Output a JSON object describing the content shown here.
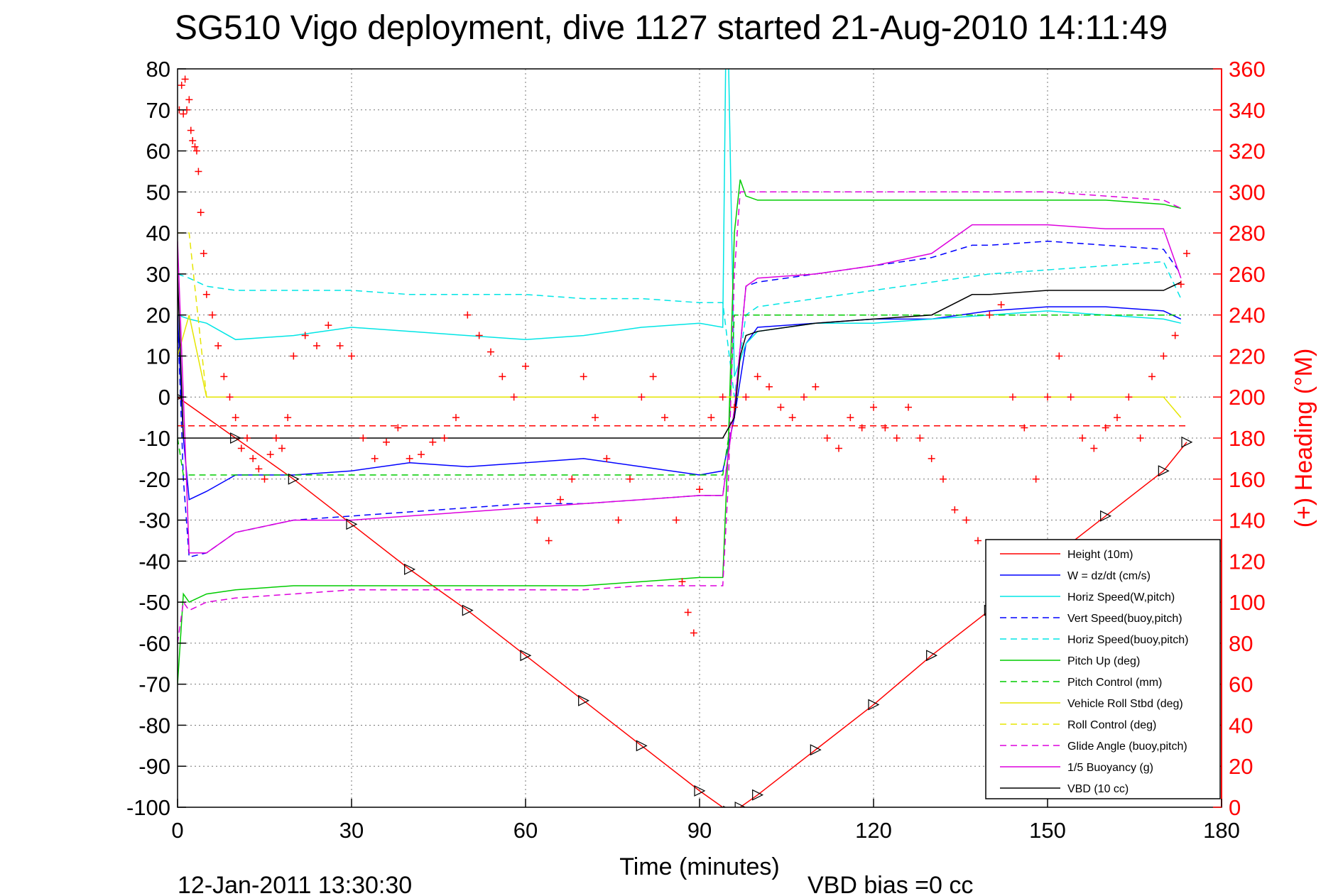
{
  "chart_data": {
    "type": "line",
    "title": "SG510 Vigo deployment, dive 1127 started 21-Aug-2010 14:11:49",
    "xlabel": "Time (minutes)",
    "ylabel": "",
    "y2label": "(+) Heading (°M)",
    "xlim": [
      0,
      180
    ],
    "ylim": [
      -100,
      80
    ],
    "y2lim": [
      0,
      360
    ],
    "x_ticks": [
      "0",
      "30",
      "60",
      "90",
      "120",
      "150",
      "180"
    ],
    "y_ticks": [
      "80",
      "70",
      "60",
      "50",
      "40",
      "30",
      "20",
      "10",
      "0",
      "-10",
      "-20",
      "-30",
      "-40",
      "-50",
      "-60",
      "-70",
      "-80",
      "-90",
      "-100"
    ],
    "y2_ticks": [
      "360",
      "340",
      "320",
      "300",
      "280",
      "260",
      "240",
      "220",
      "200",
      "180",
      "160",
      "140",
      "120",
      "100",
      "80",
      "60",
      "40",
      "20",
      "0"
    ],
    "grid": true,
    "legend_position": "bottom-right",
    "footer_left": "12-Jan-2011 13:30:30",
    "footer_right": "VBD bias =0 cc",
    "series": [
      {
        "name": "Height (10m)",
        "color": "#ff0000",
        "style": "solid",
        "x": [
          0,
          10,
          20,
          30,
          40,
          50,
          60,
          70,
          80,
          90,
          95,
          97,
          100,
          110,
          120,
          130,
          140,
          150,
          160,
          170,
          174
        ],
        "y": [
          0,
          -10,
          -20,
          -31,
          -42,
          -52,
          -63,
          -74,
          -85,
          -96,
          -101,
          -100,
          -97,
          -86,
          -75,
          -63,
          -52,
          -40,
          -29,
          -18,
          -11
        ]
      },
      {
        "name": "W = dz/dt (cm/s)",
        "color": "#0000ff",
        "style": "solid",
        "x": [
          0,
          1,
          2,
          5,
          10,
          20,
          30,
          40,
          50,
          60,
          70,
          80,
          90,
          94,
          96,
          98,
          100,
          110,
          120,
          130,
          140,
          150,
          160,
          170,
          173
        ],
        "y": [
          20,
          -10,
          -25,
          -23,
          -19,
          -19,
          -18,
          -16,
          -17,
          -16,
          -15,
          -17,
          -19,
          -18,
          -5,
          13,
          17,
          18,
          19,
          19,
          21,
          22,
          22,
          21,
          19
        ]
      },
      {
        "name": "Horiz Speed(W,pitch)",
        "color": "#00e5e5",
        "style": "solid",
        "x": [
          0,
          2,
          5,
          10,
          20,
          30,
          40,
          50,
          60,
          70,
          80,
          90,
          94,
          94.5,
          95,
          96,
          98,
          100,
          110,
          120,
          130,
          140,
          150,
          160,
          170,
          173
        ],
        "y": [
          20,
          19,
          18,
          14,
          15,
          17,
          16,
          15,
          14,
          15,
          17,
          18,
          17,
          82,
          82,
          5,
          13,
          16,
          18,
          18,
          19,
          20,
          21,
          20,
          19,
          18
        ]
      },
      {
        "name": "Vert Speed(buoy,pitch)",
        "color": "#0000ff",
        "style": "dashed",
        "x": [
          0,
          1,
          2,
          5,
          10,
          20,
          30,
          40,
          50,
          60,
          70,
          80,
          90,
          94,
          96,
          98,
          100,
          110,
          120,
          130,
          137,
          140,
          150,
          160,
          170,
          173
        ],
        "y": [
          20,
          -20,
          -39,
          -38,
          -33,
          -30,
          -29,
          -28,
          -27,
          -26,
          -26,
          -25,
          -24,
          -24,
          -3,
          27,
          28,
          30,
          32,
          34,
          37,
          37,
          38,
          37,
          36,
          30
        ]
      },
      {
        "name": "Horiz Speed(buoy,pitch)",
        "color": "#00e5e5",
        "style": "dashed",
        "x": [
          0,
          2,
          5,
          10,
          20,
          30,
          40,
          50,
          60,
          70,
          80,
          90,
          94,
          96,
          98,
          100,
          110,
          120,
          130,
          140,
          150,
          160,
          170,
          173
        ],
        "y": [
          30,
          29,
          27,
          26,
          26,
          26,
          25,
          25,
          25,
          24,
          24,
          23,
          23,
          0,
          20,
          22,
          24,
          26,
          28,
          30,
          31,
          32,
          33,
          24
        ]
      },
      {
        "name": "Pitch Up (deg)",
        "color": "#00cc00",
        "style": "solid",
        "x": [
          0,
          1,
          2,
          5,
          10,
          20,
          30,
          40,
          50,
          60,
          70,
          80,
          90,
          94,
          95,
          96,
          97,
          98,
          100,
          110,
          120,
          130,
          140,
          150,
          160,
          170,
          173
        ],
        "y": [
          -70,
          -48,
          -50,
          -48,
          -47,
          -46,
          -46,
          -46,
          -46,
          -46,
          -46,
          -45,
          -44,
          -44,
          -10,
          40,
          53,
          49,
          48,
          48,
          48,
          48,
          48,
          48,
          48,
          47,
          46
        ]
      },
      {
        "name": "Pitch Control (mm)",
        "color": "#00cc00",
        "style": "dashed",
        "x": [
          0,
          1,
          2,
          94,
          95,
          96,
          173
        ],
        "y": [
          -10,
          -19,
          -19,
          -19,
          -10,
          20,
          20
        ]
      },
      {
        "name": "Vehicle Roll Stbd (deg)",
        "color": "#e5e500",
        "style": "solid",
        "x": [
          0,
          2,
          5,
          10,
          20,
          30,
          40,
          50,
          60,
          70,
          80,
          90,
          100,
          110,
          120,
          130,
          140,
          150,
          160,
          170,
          173
        ],
        "y": [
          10,
          20,
          0,
          0,
          0,
          0,
          0,
          0,
          0,
          0,
          0,
          0,
          0,
          0,
          0,
          0,
          0,
          0,
          0,
          0,
          -5
        ]
      },
      {
        "name": "Roll Control (deg)",
        "color": "#e5e500",
        "style": "dashed",
        "x": [
          0,
          2,
          5,
          10,
          20,
          30,
          40,
          50,
          60,
          70,
          80,
          90,
          100,
          110,
          120,
          130,
          140,
          150,
          160,
          170,
          173
        ],
        "y": [
          40,
          40,
          0,
          0,
          0,
          0,
          0,
          0,
          0,
          0,
          0,
          0,
          0,
          0,
          0,
          0,
          0,
          0,
          0,
          0,
          0
        ]
      },
      {
        "name": "Glide Angle (buoy,pitch)",
        "color": "#dd00dd",
        "style": "dashed",
        "x": [
          0,
          1,
          2,
          5,
          10,
          20,
          30,
          40,
          50,
          60,
          70,
          80,
          90,
          94,
          95,
          96,
          97,
          98,
          100,
          110,
          120,
          130,
          140,
          150,
          160,
          170,
          173
        ],
        "y": [
          -60,
          -50,
          -52,
          -50,
          -49,
          -48,
          -47,
          -47,
          -47,
          -47,
          -47,
          -46,
          -46,
          -46,
          -20,
          30,
          50,
          50,
          50,
          50,
          50,
          50,
          50,
          50,
          49,
          48,
          46
        ]
      },
      {
        "name": "1/5 Buoyancy (g)",
        "color": "#dd00dd",
        "style": "solid",
        "x": [
          0,
          1,
          2,
          5,
          10,
          20,
          30,
          40,
          50,
          60,
          70,
          80,
          90,
          94,
          96,
          98,
          100,
          110,
          120,
          130,
          137,
          140,
          150,
          160,
          170,
          173
        ],
        "y": [
          38,
          0,
          -38,
          -38,
          -33,
          -30,
          -30,
          -29,
          -28,
          -27,
          -26,
          -25,
          -24,
          -24,
          -3,
          27,
          29,
          30,
          32,
          35,
          42,
          42,
          42,
          41,
          41,
          29
        ]
      },
      {
        "name": "VBD (10 cc)",
        "color": "#000000",
        "style": "solid",
        "x": [
          0,
          1,
          2,
          70,
          94,
          96,
          97,
          98,
          100,
          105,
          110,
          120,
          130,
          137,
          140,
          150,
          160,
          170,
          173
        ],
        "y": [
          30,
          -10,
          -10,
          -10,
          -10,
          -5,
          10,
          15,
          16,
          17,
          18,
          19,
          20,
          25,
          25,
          26,
          26,
          26,
          28
        ]
      },
      {
        "name": "VBD bias ref",
        "color": "#ff0000",
        "style": "dashed",
        "x": [
          0,
          174
        ],
        "y": [
          -7,
          -7
        ]
      },
      {
        "name": "Heading",
        "color": "#ff0000",
        "style": "plus",
        "axis": "right",
        "x": [
          0.3,
          0.7,
          1,
          1.3,
          1.6,
          2,
          2.3,
          2.6,
          3,
          3.3,
          3.6,
          4,
          4.5,
          5,
          6,
          7,
          8,
          9,
          10,
          11,
          12,
          13,
          14,
          15,
          16,
          17,
          18,
          19,
          20,
          22,
          24,
          26,
          28,
          30,
          32,
          34,
          36,
          38,
          40,
          42,
          44,
          46,
          48,
          50,
          52,
          54,
          56,
          58,
          60,
          62,
          64,
          66,
          68,
          70,
          72,
          74,
          76,
          78,
          80,
          82,
          84,
          86,
          87,
          88,
          89,
          90,
          92,
          94,
          96,
          98,
          100,
          102,
          104,
          106,
          108,
          110,
          112,
          114,
          116,
          118,
          120,
          122,
          124,
          126,
          128,
          130,
          132,
          134,
          136,
          138,
          140,
          142,
          144,
          146,
          148,
          150,
          152,
          154,
          156,
          158,
          160,
          162,
          164,
          166,
          168,
          170,
          172,
          173,
          174
        ],
        "y": [
          340,
          352,
          338,
          355,
          340,
          345,
          330,
          325,
          322,
          320,
          310,
          290,
          270,
          250,
          240,
          225,
          210,
          200,
          190,
          175,
          180,
          170,
          165,
          160,
          172,
          180,
          175,
          190,
          220,
          230,
          225,
          235,
          225,
          220,
          180,
          170,
          178,
          185,
          170,
          172,
          178,
          180,
          190,
          240,
          230,
          222,
          210,
          200,
          215,
          140,
          130,
          150,
          160,
          210,
          190,
          170,
          140,
          160,
          200,
          210,
          190,
          140,
          110,
          95,
          85,
          155,
          190,
          200,
          195,
          200,
          210,
          205,
          195,
          190,
          200,
          205,
          180,
          175,
          190,
          185,
          195,
          185,
          180,
          195,
          180,
          170,
          160,
          145,
          140,
          130,
          240,
          245,
          200,
          185,
          160,
          200,
          220,
          200,
          180,
          175,
          185,
          190,
          200,
          180,
          210,
          220,
          230,
          255,
          270
        ]
      }
    ]
  }
}
